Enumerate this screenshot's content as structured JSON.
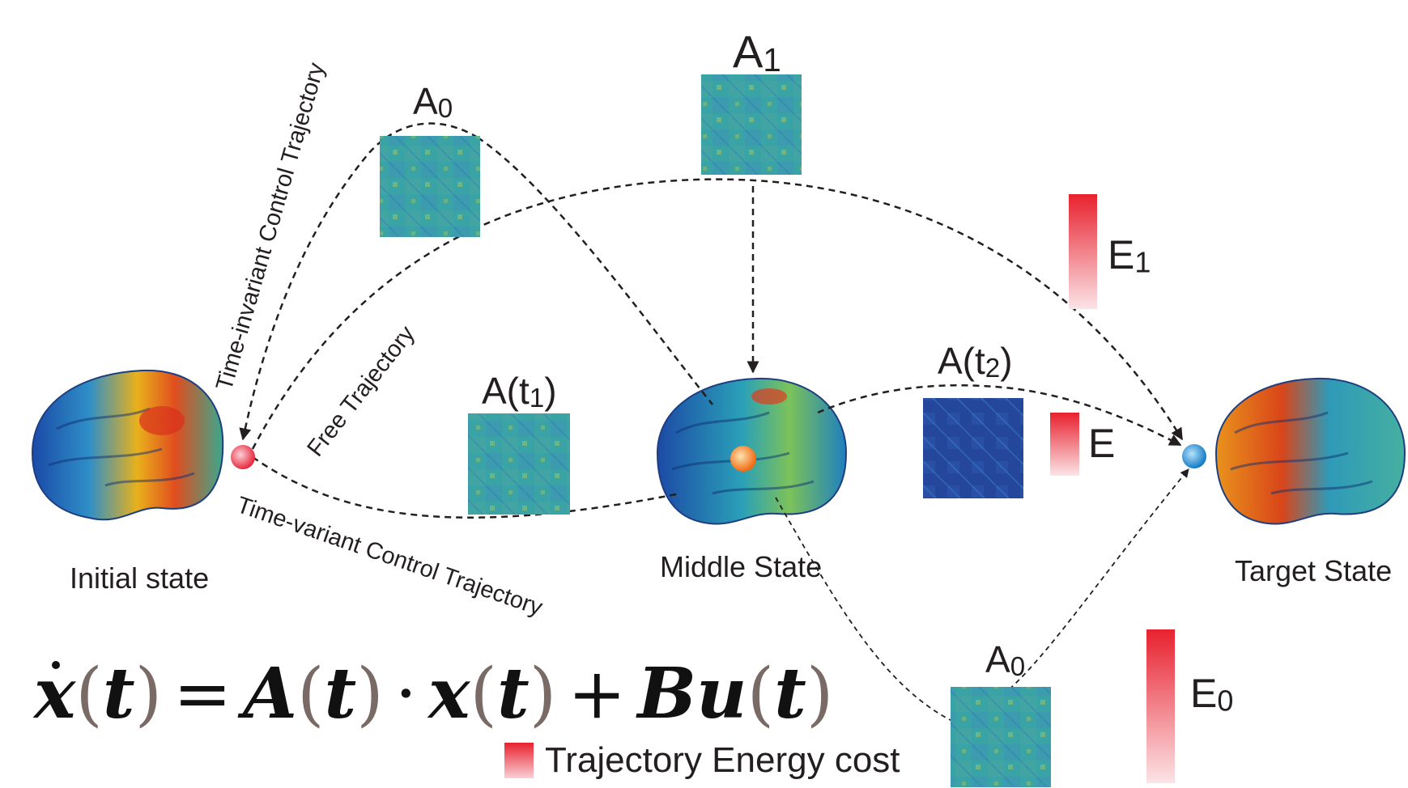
{
  "diagram": {
    "states": {
      "initial": "Initial state",
      "middle": "Middle State",
      "target": "Target State"
    },
    "matrices": {
      "a0_top": "A",
      "a0_top_sub": "0",
      "a1": "A",
      "a1_sub": "1",
      "at1": "A(t",
      "at1_sub": "1",
      "at1_close": ")",
      "at2": "A(t",
      "at2_sub": "2",
      "at2_close": ")",
      "a0_bottom": "A",
      "a0_bottom_sub": "0"
    },
    "energies": {
      "e1": "E",
      "e1_sub": "1",
      "e": "E",
      "e0": "E",
      "e0_sub": "0"
    },
    "trajectories": {
      "time_invariant": "Time-invariant Control Trajectory",
      "free": "Free Trajectory",
      "time_variant": "Time-variant Control Trajectory"
    },
    "equation": {
      "lhs": "x",
      "t": "t",
      "eq": "=",
      "A": "A",
      "dot": "·",
      "x": "x",
      "plus": "+",
      "Bu": "Bu"
    },
    "legend": "Trajectory Energy cost",
    "colors": {
      "energy_red": "#e8212e",
      "matrix_green": "#3aa0a8",
      "matrix_blue": "#24479a",
      "node_initial": "#f05a6e",
      "node_middle": "#f7941d",
      "node_target": "#1f8ccf"
    }
  }
}
